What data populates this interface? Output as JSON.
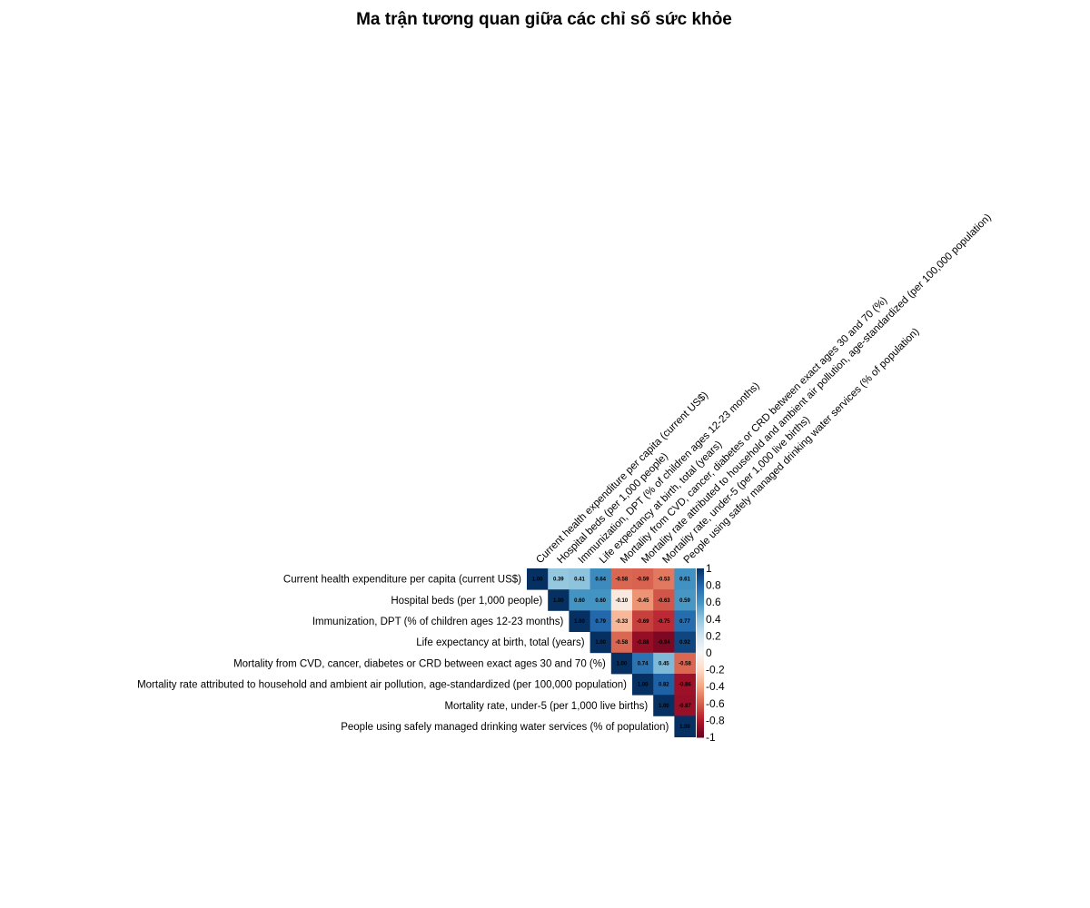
{
  "chart_data": {
    "type": "heatmap",
    "title": "Ma trận tương quan giữa các chỉ số sức khỏe",
    "variables": [
      "Current health expenditure per capita (current US$)",
      "Hospital beds (per 1,000 people)",
      "Immunization, DPT (% of children ages 12-23 months)",
      "Life expectancy at birth, total (years)",
      "Mortality from CVD, cancer, diabetes or CRD between exact ages 30 and 70 (%)",
      "Mortality rate attributed to household and ambient air pollution, age-standardized (per 100,000 population)",
      "Mortality rate, under-5 (per 1,000 live births)",
      "People using safely managed drinking water services (% of population)"
    ],
    "matrix_upper": [
      [
        1.0,
        0.39,
        0.41,
        0.64,
        -0.58,
        -0.59,
        -0.53,
        0.61
      ],
      [
        null,
        1.0,
        0.6,
        0.6,
        -0.1,
        -0.45,
        -0.63,
        0.59
      ],
      [
        null,
        null,
        1.0,
        0.79,
        -0.33,
        -0.69,
        -0.75,
        0.77
      ],
      [
        null,
        null,
        null,
        1.0,
        -0.58,
        -0.88,
        -0.94,
        0.92
      ],
      [
        null,
        null,
        null,
        null,
        1.0,
        0.74,
        0.45,
        -0.58
      ],
      [
        null,
        null,
        null,
        null,
        null,
        1.0,
        0.82,
        -0.86
      ],
      [
        null,
        null,
        null,
        null,
        null,
        null,
        1.0,
        -0.87
      ],
      [
        null,
        null,
        null,
        null,
        null,
        null,
        null,
        1.0
      ]
    ],
    "value_labels": [
      [
        "1.00",
        "0.39",
        "0.41",
        "0.64",
        "-0.58",
        "-0.59",
        "-0.53",
        "0.61"
      ],
      [
        null,
        "1.00",
        "0.60",
        "0.60",
        "-0.10",
        "-0.45",
        "-0.63",
        "0.59"
      ],
      [
        null,
        null,
        "1.00",
        "0.79",
        "-0.33",
        "-0.69",
        "-0.75",
        "0.77"
      ],
      [
        null,
        null,
        null,
        "1.00",
        "-0.58",
        "-0.88",
        "-0.94",
        "0.92"
      ],
      [
        null,
        null,
        null,
        null,
        "1.00",
        "0.74",
        "0.45",
        "-0.58"
      ],
      [
        null,
        null,
        null,
        null,
        null,
        "1.00",
        "0.82",
        "-0.86"
      ],
      [
        null,
        null,
        null,
        null,
        null,
        null,
        "1.00",
        "-0.87"
      ],
      [
        null,
        null,
        null,
        null,
        null,
        null,
        null,
        "1.00"
      ]
    ],
    "colorbar": {
      "range": [
        -1,
        1
      ],
      "ticks": [
        "1",
        "0.8",
        "0.6",
        "0.4",
        "0.2",
        "0",
        "-0.2",
        "-0.4",
        "-0.6",
        "-0.8",
        "-1"
      ]
    },
    "colors": {
      "negative_strong": "#67001f",
      "neutral": "#f7f7f7",
      "positive_strong": "#053061"
    }
  }
}
